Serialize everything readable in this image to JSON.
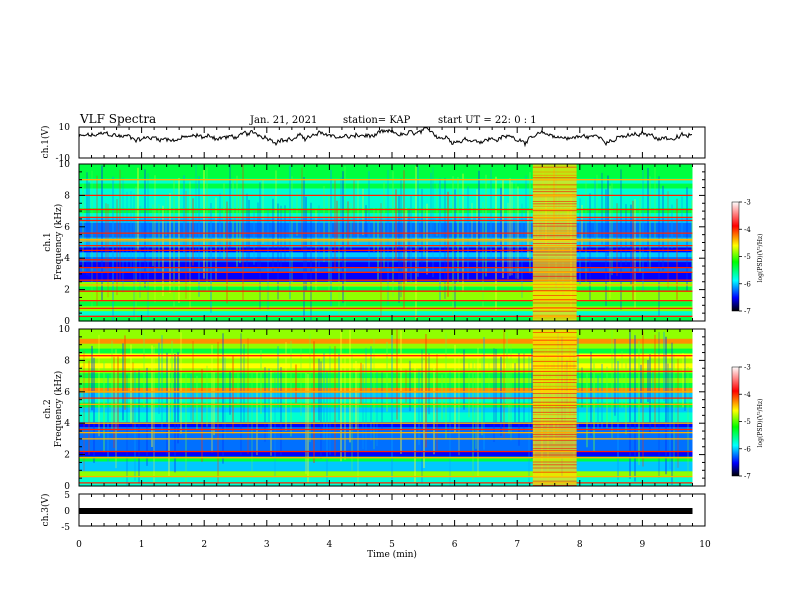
{
  "header": {
    "title": "VLF Spectra",
    "date": "Jan. 21, 2021",
    "station": "station= KAP",
    "start_ut": "start  UT =  22: 0  : 1"
  },
  "chart_data": {
    "type": "heatmap",
    "x_axis": {
      "label": "Time  (min)",
      "range": [
        0,
        10
      ],
      "ticks": [
        "0",
        "1",
        "2",
        "3",
        "4",
        "5",
        "6",
        "7",
        "8",
        "9",
        "10"
      ],
      "data_end_min": 9.8
    },
    "waveform_ch1": {
      "ylabel": "ch.1(V)",
      "ylim": [
        -10,
        10
      ],
      "tick_labels": [
        "10",
        "-10"
      ],
      "baseline_v": 3.5
    },
    "spectrogram_ch1": {
      "ylabel_1": "ch.1",
      "ylabel_2": "Frequency  (kHz)",
      "ylim_khz": [
        0,
        10
      ],
      "tick_labels": [
        "0",
        "2",
        "4",
        "6",
        "8",
        "10"
      ],
      "burst_window_min": [
        7.25,
        7.95
      ],
      "bands_khz": [
        0.3,
        0.8,
        1.3,
        1.9,
        2.3,
        2.6,
        3.1,
        3.4,
        3.9,
        4.5,
        4.8,
        5.1,
        5.2,
        5.6,
        6.4,
        6.6,
        7.1,
        8.0,
        9.0
      ]
    },
    "spectrogram_ch2": {
      "ylabel_1": "ch.2",
      "ylabel_2": "Frequency  (kHz)",
      "ylim_khz": [
        0,
        10
      ],
      "tick_labels": [
        "0",
        "2",
        "4",
        "6",
        "8",
        "10"
      ],
      "burst_window_min": [
        7.25,
        7.95
      ],
      "bands_khz": [
        0.2,
        0.6,
        1.8,
        2.2,
        3.0,
        3.4,
        3.6,
        4.0,
        5.2,
        5.6,
        6.0,
        7.3,
        8.3
      ]
    },
    "waveform_ch3": {
      "ylabel": "ch.3(V)",
      "ylim": [
        -5,
        5
      ],
      "tick_labels": [
        "5",
        "0",
        "-5"
      ],
      "level_v": -0.3
    },
    "colorbar": {
      "label": "log(PSD)(V²/Hz)",
      "range": [
        -7,
        -3
      ],
      "tick_labels": [
        "-3",
        "-4",
        "-5",
        "-6",
        "-7"
      ]
    }
  }
}
